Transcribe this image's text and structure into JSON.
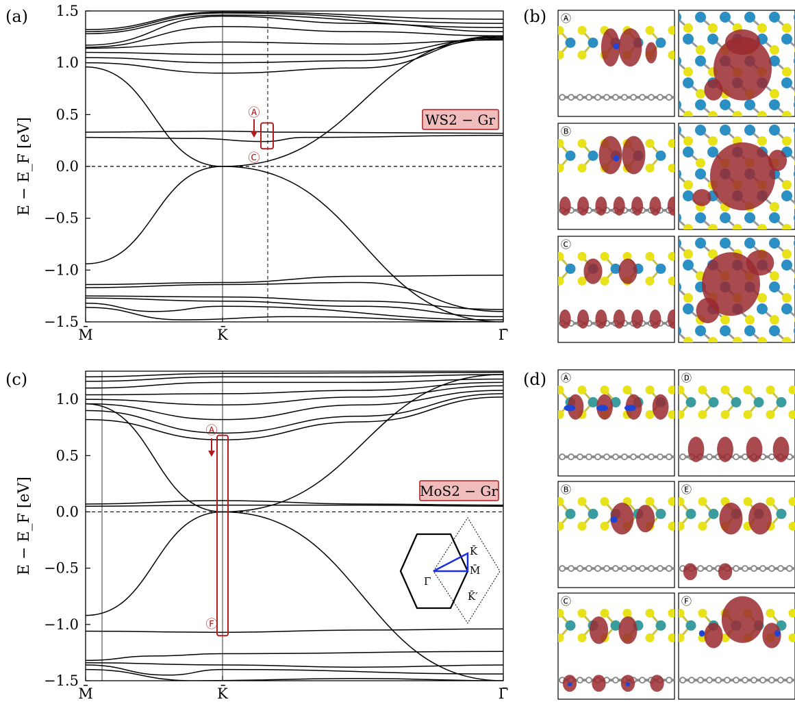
{
  "panel_labels": {
    "a": "(a)",
    "b": "(b)",
    "c": "(c)",
    "d": "(d)"
  },
  "colors": {
    "marker_red": "#b01c1c",
    "tag_fill": "#f0bcbc",
    "inset_path": "#1a2ee8",
    "density_red": "#9a2a30",
    "density_blue": "#1f45d8",
    "s_atom": "#e8e21a",
    "w_atom": "#2b8fc3",
    "mo_atom": "#3a9c9e",
    "c_atom": "#8a8a8a"
  },
  "chart_data": [
    {
      "type": "line",
      "panel": "(a)",
      "ylabel": "E − E_F [eV]",
      "ylim": [
        -1.5,
        1.5
      ],
      "yticks": [
        "1.5",
        "1.0",
        "0.5",
        "0.0",
        "−0.5",
        "−1.0",
        "−1.5"
      ],
      "ytick_values": [
        1.5,
        1.0,
        0.5,
        0.0,
        -0.5,
        -1.0,
        -1.5
      ],
      "xticks": [
        "M̄",
        "K̄",
        "Γ̄"
      ],
      "x_coords": [
        0,
        1,
        3.05
      ],
      "tag": "WS2 − Gr",
      "markers": [
        "Ⓐ",
        "Ⓒ"
      ],
      "fermi_level": 0.0,
      "dashed_vline_x": 1.33,
      "highlight_box": {
        "x": [
          1.28,
          1.37
        ],
        "y": [
          0.17,
          0.42
        ]
      },
      "series": [
        {
          "values": [
            [
              0,
              0.96
            ],
            [
              1,
              0.0
            ],
            [
              3.05,
              -1.5
            ]
          ]
        },
        {
          "values": [
            [
              0,
              -0.94
            ],
            [
              1,
              0.0
            ],
            [
              3.05,
              1.26
            ]
          ]
        },
        {
          "values": [
            [
              0,
              0.33
            ],
            [
              1,
              0.34
            ],
            [
              1.5,
              0.33
            ],
            [
              3.05,
              0.32
            ]
          ]
        },
        {
          "values": [
            [
              0,
              0.28
            ],
            [
              0.8,
              0.27
            ],
            [
              1.3,
              0.24
            ],
            [
              1.6,
              0.28
            ],
            [
              3.05,
              0.3
            ]
          ]
        },
        {
          "values": [
            [
              0,
              1.17
            ],
            [
              1,
              1.45
            ],
            [
              2.0,
              1.38
            ],
            [
              3.05,
              1.3
            ]
          ]
        },
        {
          "values": [
            [
              0,
              1.15
            ],
            [
              1,
              1.35
            ],
            [
              2.0,
              1.3
            ],
            [
              3.05,
              1.26
            ]
          ]
        },
        {
          "values": [
            [
              0,
              1.14
            ],
            [
              1,
              1.2
            ],
            [
              2.0,
              1.18
            ],
            [
              3.05,
              1.22
            ]
          ]
        },
        {
          "values": [
            [
              0,
              1.1
            ],
            [
              1,
              1.08
            ],
            [
              2.0,
              1.08
            ],
            [
              3.05,
              1.24
            ]
          ]
        },
        {
          "values": [
            [
              0,
              1.05
            ],
            [
              1,
              1.0
            ],
            [
              2.0,
              1.02
            ],
            [
              3.05,
              1.23
            ]
          ]
        },
        {
          "values": [
            [
              0,
              1.0
            ],
            [
              1,
              0.9
            ],
            [
              2.0,
              0.95
            ],
            [
              3.05,
              1.25
            ]
          ]
        },
        {
          "values": [
            [
              0,
              1.28
            ],
            [
              1,
              1.46
            ],
            [
              3.05,
              1.34
            ]
          ]
        },
        {
          "values": [
            [
              0,
              1.3
            ],
            [
              1,
              1.48
            ],
            [
              3.05,
              1.38
            ]
          ]
        },
        {
          "values": [
            [
              0,
              1.32
            ],
            [
              1,
              1.49
            ],
            [
              3.05,
              1.42
            ]
          ]
        },
        {
          "values": [
            [
              0,
              -1.14
            ],
            [
              1,
              -1.12
            ],
            [
              2.0,
              -1.06
            ],
            [
              3.05,
              -1.05
            ]
          ]
        },
        {
          "values": [
            [
              0,
              -1.17
            ],
            [
              1,
              -1.14
            ],
            [
              2.0,
              -1.12
            ],
            [
              3.05,
              -1.4
            ]
          ]
        },
        {
          "values": [
            [
              0,
              -1.25
            ],
            [
              1,
              -1.26
            ],
            [
              2.0,
              -1.3
            ],
            [
              3.05,
              -1.38
            ]
          ]
        },
        {
          "values": [
            [
              0,
              -1.27
            ],
            [
              1,
              -1.3
            ],
            [
              2.0,
              -1.35
            ],
            [
              3.05,
              -1.45
            ]
          ]
        },
        {
          "values": [
            [
              0,
              -1.32
            ],
            [
              0.5,
              -1.4
            ],
            [
              1,
              -1.35
            ],
            [
              3.05,
              -1.48
            ]
          ]
        },
        {
          "values": [
            [
              0,
              -1.36
            ],
            [
              0.7,
              -1.48
            ],
            [
              1.5,
              -1.45
            ],
            [
              3.05,
              -1.5
            ]
          ]
        }
      ]
    },
    {
      "type": "line",
      "panel": "(c)",
      "ylabel": "E − E_F [eV]",
      "ylim": [
        -1.5,
        1.25
      ],
      "yticks": [
        "1.0",
        "0.5",
        "0.0",
        "−0.5",
        "−1.0",
        "−1.5"
      ],
      "ytick_values": [
        1.0,
        0.5,
        0.0,
        -0.5,
        -1.0,
        -1.5
      ],
      "xticks": [
        "M̄",
        "K̄",
        "Γ̄"
      ],
      "x_coords": [
        0,
        1,
        3.05
      ],
      "tag": "MoS2 − Gr",
      "markers": [
        "Ⓐ",
        "Ⓕ"
      ],
      "fermi_level": 0.0,
      "extra_vline_x": 0.12,
      "highlight_box": {
        "x": [
          0.96,
          1.04
        ],
        "y": [
          -1.1,
          0.68
        ]
      },
      "series": [
        {
          "values": [
            [
              0,
              0.96
            ],
            [
              1,
              0.0
            ],
            [
              3.05,
              -1.5
            ]
          ]
        },
        {
          "values": [
            [
              0,
              -0.92
            ],
            [
              1,
              0.0
            ],
            [
              3.05,
              1.22
            ]
          ]
        },
        {
          "values": [
            [
              0,
              0.07
            ],
            [
              1,
              0.1
            ],
            [
              2.0,
              0.07
            ],
            [
              3.05,
              0.06
            ]
          ]
        },
        {
          "values": [
            [
              0,
              0.05
            ],
            [
              1,
              0.06
            ],
            [
              2.0,
              0.06
            ],
            [
              3.05,
              0.05
            ]
          ]
        },
        {
          "values": [
            [
              0,
              0.82
            ],
            [
              1,
              0.64
            ],
            [
              2.0,
              0.8
            ],
            [
              3.05,
              1.02
            ]
          ]
        },
        {
          "values": [
            [
              0,
              0.9
            ],
            [
              1,
              0.7
            ],
            [
              2.0,
              0.85
            ],
            [
              3.05,
              1.05
            ]
          ]
        },
        {
          "values": [
            [
              0,
              0.96
            ],
            [
              1,
              0.82
            ],
            [
              2.0,
              0.95
            ],
            [
              3.05,
              1.08
            ]
          ]
        },
        {
          "values": [
            [
              0,
              1.0
            ],
            [
              1,
              0.95
            ],
            [
              2.0,
              1.02
            ],
            [
              3.05,
              1.12
            ]
          ]
        },
        {
          "values": [
            [
              0,
              1.04
            ],
            [
              1,
              1.05
            ],
            [
              2.0,
              1.08
            ],
            [
              3.05,
              1.15
            ]
          ]
        },
        {
          "values": [
            [
              0,
              1.1
            ],
            [
              1,
              1.15
            ],
            [
              2.0,
              1.15
            ],
            [
              3.05,
              1.18
            ]
          ]
        },
        {
          "values": [
            [
              0,
              1.16
            ],
            [
              1,
              1.2
            ],
            [
              2.0,
              1.2
            ],
            [
              3.05,
              1.22
            ]
          ]
        },
        {
          "values": [
            [
              0,
              1.2
            ],
            [
              1,
              1.23
            ],
            [
              3.05,
              1.24
            ]
          ]
        },
        {
          "values": [
            [
              0,
              -1.06
            ],
            [
              1,
              -1.07
            ],
            [
              2.0,
              -1.05
            ],
            [
              3.05,
              -1.04
            ]
          ]
        },
        {
          "values": [
            [
              0,
              -1.32
            ],
            [
              0.5,
              -1.28
            ],
            [
              1,
              -1.26
            ],
            [
              3.05,
              -1.24
            ]
          ]
        },
        {
          "values": [
            [
              0,
              -1.34
            ],
            [
              1,
              -1.36
            ],
            [
              2.0,
              -1.38
            ],
            [
              3.05,
              -1.36
            ]
          ]
        },
        {
          "values": [
            [
              0,
              -1.36
            ],
            [
              0.6,
              -1.45
            ],
            [
              1,
              -1.4
            ],
            [
              3.05,
              -1.44
            ]
          ]
        },
        {
          "values": [
            [
              0,
              -1.4
            ],
            [
              0.8,
              -1.5
            ],
            [
              2.0,
              -1.48
            ],
            [
              3.05,
              -1.5
            ]
          ]
        }
      ],
      "inset": {
        "labels": [
          "K̄",
          "M̄",
          "Γ̄",
          "K̄′"
        ]
      }
    }
  ],
  "structures": {
    "b": {
      "rows": [
        "Ⓐ",
        "Ⓑ",
        "Ⓒ"
      ],
      "metal": "W"
    },
    "d": {
      "left": [
        "Ⓐ",
        "Ⓑ",
        "Ⓒ"
      ],
      "right": [
        "Ⓓ",
        "Ⓔ",
        "Ⓕ"
      ],
      "metal": "Mo"
    }
  }
}
